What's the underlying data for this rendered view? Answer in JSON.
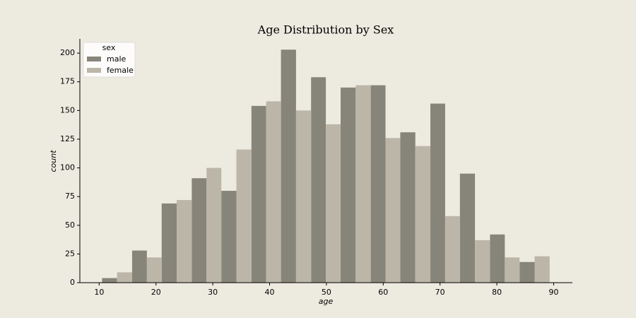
{
  "chart_data": {
    "type": "histogram",
    "title": "Age Distribution by Sex",
    "x_label": "age",
    "y_label": "count",
    "legend_title": "sex",
    "legend": "upper left",
    "bins": [
      10.5,
      15.8,
      21.0,
      26.3,
      31.5,
      36.8,
      42.0,
      47.3,
      52.5,
      57.8,
      63.0,
      68.3,
      73.5,
      78.8,
      84.0,
      89.3
    ],
    "series": [
      {
        "name": "male",
        "color": "#878579",
        "values": [
          4,
          28,
          69,
          91,
          80,
          154,
          203,
          179,
          170,
          172,
          131,
          156,
          95,
          42,
          18
        ]
      },
      {
        "name": "female",
        "color": "#bcb6a8",
        "values": [
          9,
          22,
          72,
          100,
          116,
          158,
          150,
          138,
          172,
          126,
          119,
          58,
          37,
          22,
          23
        ]
      }
    ],
    "xlim": [
      6.6,
      93.3
    ],
    "xticks": [
      10,
      20,
      30,
      40,
      50,
      60,
      70,
      80,
      90
    ],
    "ylim": [
      0,
      212.4
    ],
    "yticks": [
      0,
      25,
      50,
      75,
      100,
      125,
      150,
      175,
      200
    ]
  }
}
